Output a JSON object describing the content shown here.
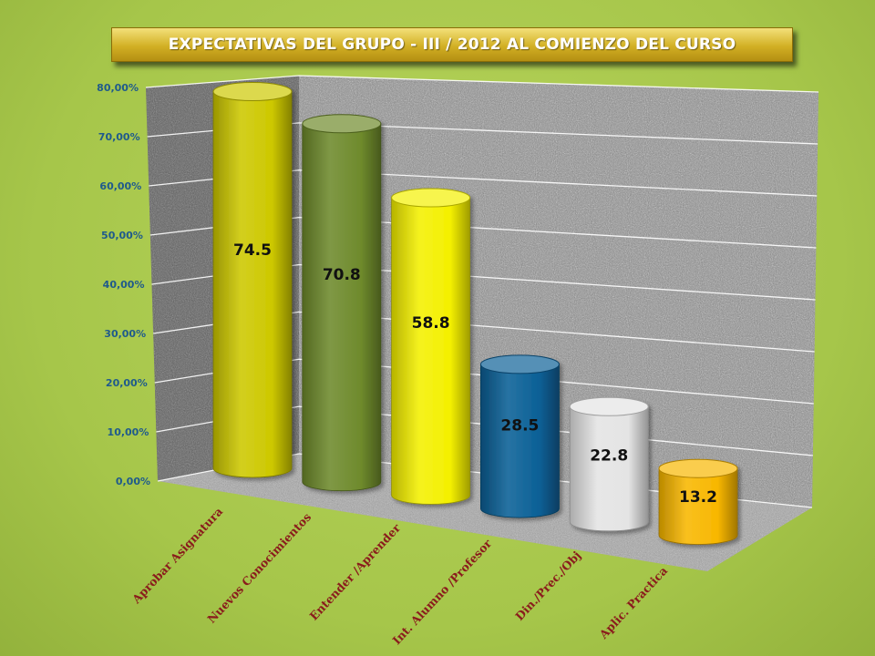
{
  "chart_data": {
    "type": "bar",
    "title": "EXPECTATIVAS  DEL GRUPO  - III / 2012  AL COMIENZO DEL CURSO",
    "xlabel": "",
    "ylabel": "",
    "categories": [
      "Aprobar  Asignatura",
      "Nuevos  Conocimientos",
      "Entender /Aprender",
      "Int. Alumno /Profesor",
      "Din./Prec./Obj",
      "Aplic. Practica"
    ],
    "values": [
      74.5,
      70.8,
      58.8,
      28.5,
      22.8,
      13.2
    ],
    "value_labels": [
      "74.5",
      "70.8",
      "58.8",
      "28.5",
      "22.8",
      "13.2"
    ],
    "ylim": [
      0,
      80
    ],
    "yticks": [
      "0,00%",
      "10,00%",
      "20,00%",
      "30,00%",
      "40,00%",
      "50,00%",
      "60,00%",
      "70,00%",
      "80,00%"
    ],
    "grid": true,
    "legend": "none",
    "bar_colors": [
      "#cdc800",
      "#6e8a2c",
      "#f4f000",
      "#0a6096",
      "#e4e4e4",
      "#f8b700"
    ]
  }
}
